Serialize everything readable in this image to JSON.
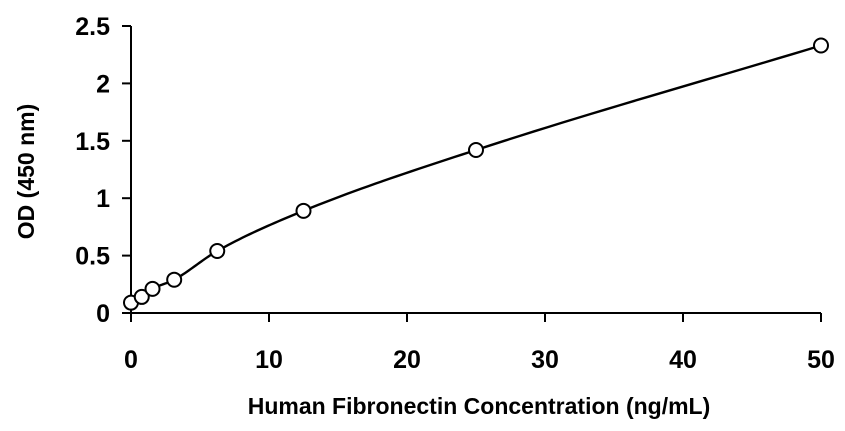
{
  "chart_data": {
    "type": "scatter",
    "title": "",
    "xlabel": "Human Fibronectin Concentration (ng/mL)",
    "ylabel": "OD (450 nm)",
    "xlim": [
      0,
      50
    ],
    "ylim": [
      0,
      2.5
    ],
    "x_ticks": [
      0,
      10,
      20,
      30,
      40,
      50
    ],
    "x_tick_labels": [
      "0",
      "10",
      "20",
      "30",
      "40",
      "50"
    ],
    "y_ticks": [
      0,
      0.5,
      1,
      1.5,
      2,
      2.5
    ],
    "y_tick_labels": [
      "0",
      "0.5",
      "1",
      "1.5",
      "2",
      "2.5"
    ],
    "grid": false,
    "legend": "none",
    "series": [
      {
        "x": [
          0,
          0.78,
          1.56,
          3.13,
          6.25,
          12.5,
          25,
          50
        ],
        "y": [
          0.09,
          0.14,
          0.21,
          0.29,
          0.54,
          0.89,
          1.42,
          2.33
        ],
        "marker": "open-circle",
        "line": "smooth",
        "color": "#000000"
      }
    ]
  }
}
